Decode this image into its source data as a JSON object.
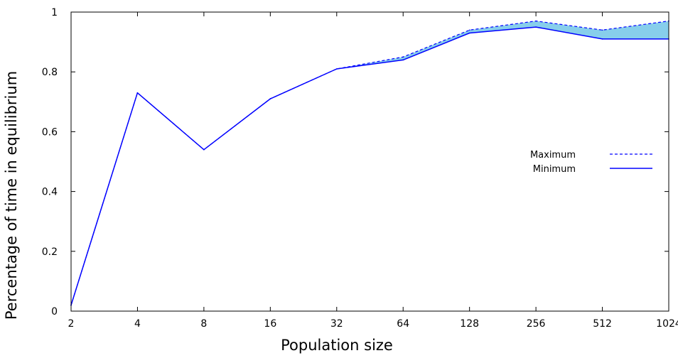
{
  "chart_data": {
    "type": "line",
    "xlabel": "Population size",
    "ylabel": "Percentage of time in equilibrium",
    "x_scale": "log2",
    "x": [
      2,
      4,
      8,
      16,
      32,
      64,
      128,
      256,
      512,
      1024
    ],
    "x_tick_labels": [
      "2",
      "4",
      "8",
      "16",
      "32",
      "64",
      "128",
      "256",
      "512",
      "1024"
    ],
    "ylim": [
      0,
      1
    ],
    "y_ticks": [
      0,
      0.2,
      0.4,
      0.6,
      0.8,
      1
    ],
    "y_tick_labels": [
      "0",
      "0.2",
      "0.4",
      "0.6",
      "0.8",
      "1"
    ],
    "series": [
      {
        "name": "Maximum",
        "style": "dashed",
        "color": "#0000ff",
        "values": [
          0.02,
          0.73,
          0.54,
          0.71,
          0.81,
          0.85,
          0.94,
          0.97,
          0.94,
          0.97
        ]
      },
      {
        "name": "Minimum",
        "style": "solid",
        "color": "#0000ff",
        "values": [
          0.02,
          0.73,
          0.54,
          0.71,
          0.81,
          0.84,
          0.93,
          0.95,
          0.91,
          0.91
        ]
      }
    ],
    "band_fill_color": "#87ceeb",
    "grid": false,
    "legend_position": "right-middle"
  }
}
